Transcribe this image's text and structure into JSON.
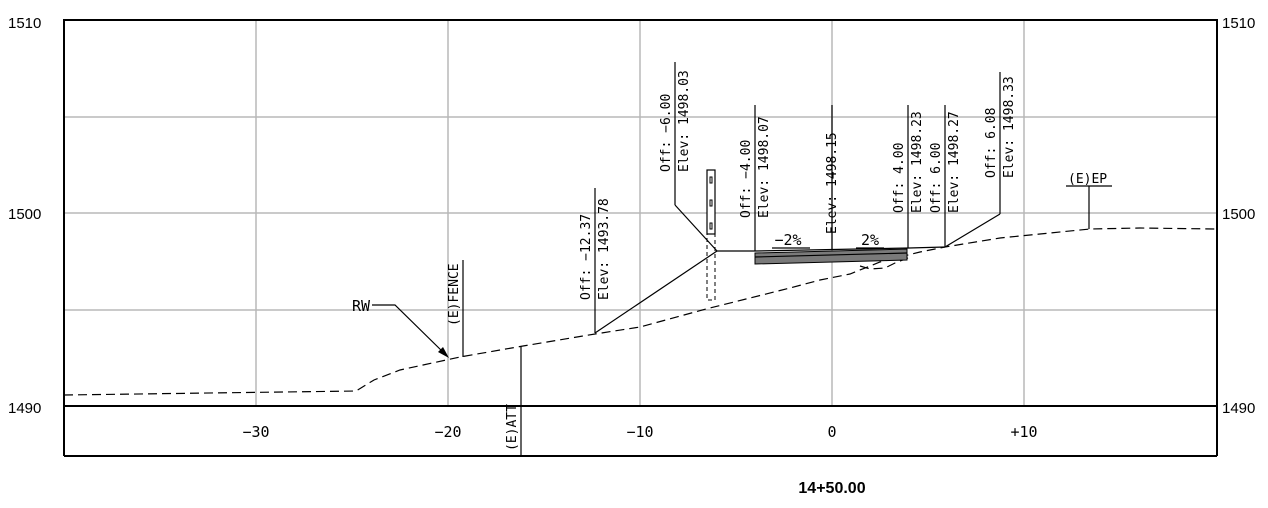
{
  "drawing": {
    "station": "14+50.00",
    "elevations": [
      "1510",
      "1500",
      "1490"
    ],
    "offsets": [
      "−30",
      "−20",
      "−10",
      "0",
      "+10"
    ]
  },
  "callouts": {
    "pt1": {
      "off": "Off: −12.37",
      "elev": "Elev: 1493.78"
    },
    "pt2": {
      "off": "Off: −6.00",
      "elev": "Elev: 1498.03"
    },
    "pt3": {
      "off": "Off: −4.00",
      "elev": "Elev: 1498.07"
    },
    "pt4": {
      "elev": "Elev: 1498.15"
    },
    "pt5": {
      "off": "Off: 4.00",
      "elev": "Elev: 1498.23"
    },
    "pt6": {
      "off": "Off: 6.00",
      "elev": "Elev: 1498.27"
    },
    "pt7": {
      "off": "Off: 6.08",
      "elev": "Elev: 1498.33"
    }
  },
  "slopes": {
    "left": "−2%",
    "right": "2%"
  },
  "features": {
    "rw": "RW",
    "fence": "(E)FENCE",
    "att": "(E)ATT",
    "ep": "(E)EP"
  },
  "colors": {
    "grid": "#b8b8b8",
    "ink": "#000000"
  }
}
